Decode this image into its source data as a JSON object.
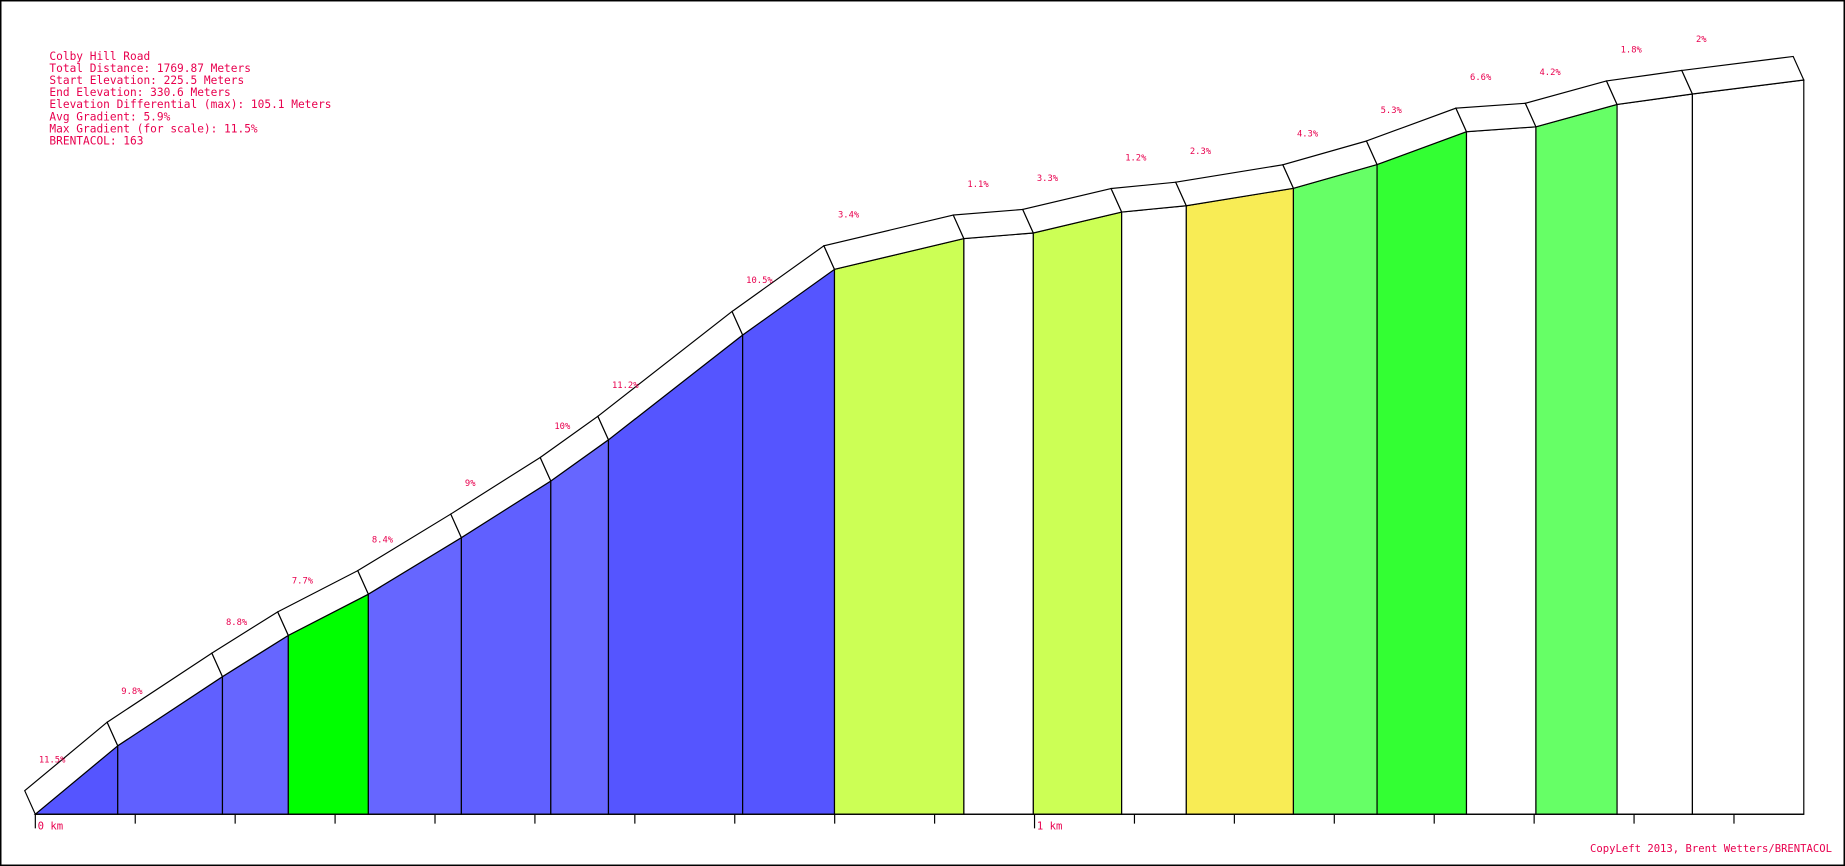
{
  "chart_data": {
    "type": "climb-profile",
    "title": "Colby Hill Road",
    "info": [
      "Total Distance: 1769.87 Meters",
      "Start Elevation: 225.5 Meters",
      "End Elevation: 330.6 Meters",
      "Elevation Differential (max): 105.1 Meters",
      "Avg Gradient: 5.9%",
      "Max Gradient (for scale): 11.5%",
      "BRENTACOL: 163"
    ],
    "footer": "CopyLeft 2013, Brent Wetters/BRENTACOL",
    "x": [
      0,
      0.0825,
      0.1873,
      0.2532,
      0.3333,
      0.4264,
      0.5159,
      0.5736,
      0.7079,
      0.7998,
      0.9293,
      0.9988,
      1.0872,
      1.1519,
      1.2591,
      1.3428,
      1.4323,
      1.5018,
      1.583,
      1.6584,
      1.76987
    ],
    "elevation": [
      225.5,
      235.3,
      245.2,
      251.1,
      257.0,
      265.1,
      273.2,
      279.1,
      294.1,
      303.5,
      307.9,
      308.7,
      311.7,
      312.6,
      315.1,
      318.5,
      323.2,
      323.9,
      327.1,
      328.6,
      330.6
    ],
    "gradient": {
      "values": [
        11.5,
        9.8,
        8.8,
        7.7,
        8.4,
        9,
        10,
        11.2,
        10.5,
        3.4,
        1.1,
        3.3,
        1.2,
        2.3,
        4.3,
        5.3,
        6.6,
        4.2,
        1.8,
        2
      ],
      "value_labels": [
        "11.5%",
        "9.8%",
        "8.8%",
        "7.7%",
        "8.4%",
        "9%",
        "10%",
        "11.2%",
        "10.5%",
        "3.4%",
        "1.1%",
        "3.3%",
        "1.2%",
        "2.3%",
        "4.3%",
        "5.3%",
        "6.6%",
        "4.2%",
        "1.8%",
        "2%"
      ],
      "colors": [
        "#5555ff",
        "#6060ff",
        "#6666ff",
        "#00ff00",
        "#6666ff",
        "#6060ff",
        "#6666ff",
        "#5555ff",
        "#5555ff",
        "#ccff55",
        "#ffffff",
        "#ccff55",
        "#ffffff",
        "#f8ec55",
        "#66ff66",
        "#33ff33",
        "#ffffff",
        "#66ff66",
        "#ffffff",
        "#ffffff"
      ]
    },
    "xlim": [
      0,
      1.76987
    ],
    "ylim": [
      225.5,
      330.6
    ],
    "xticks": [
      {
        "value": 0,
        "label": "0 km"
      },
      {
        "value": 1,
        "label": "1 km"
      }
    ],
    "minor_xticks": [
      0.1,
      0.2,
      0.3,
      0.4,
      0.5,
      0.6,
      0.7,
      0.8,
      0.9,
      1.1,
      1.2,
      1.3,
      1.4,
      1.5,
      1.6,
      1.7
    ]
  }
}
